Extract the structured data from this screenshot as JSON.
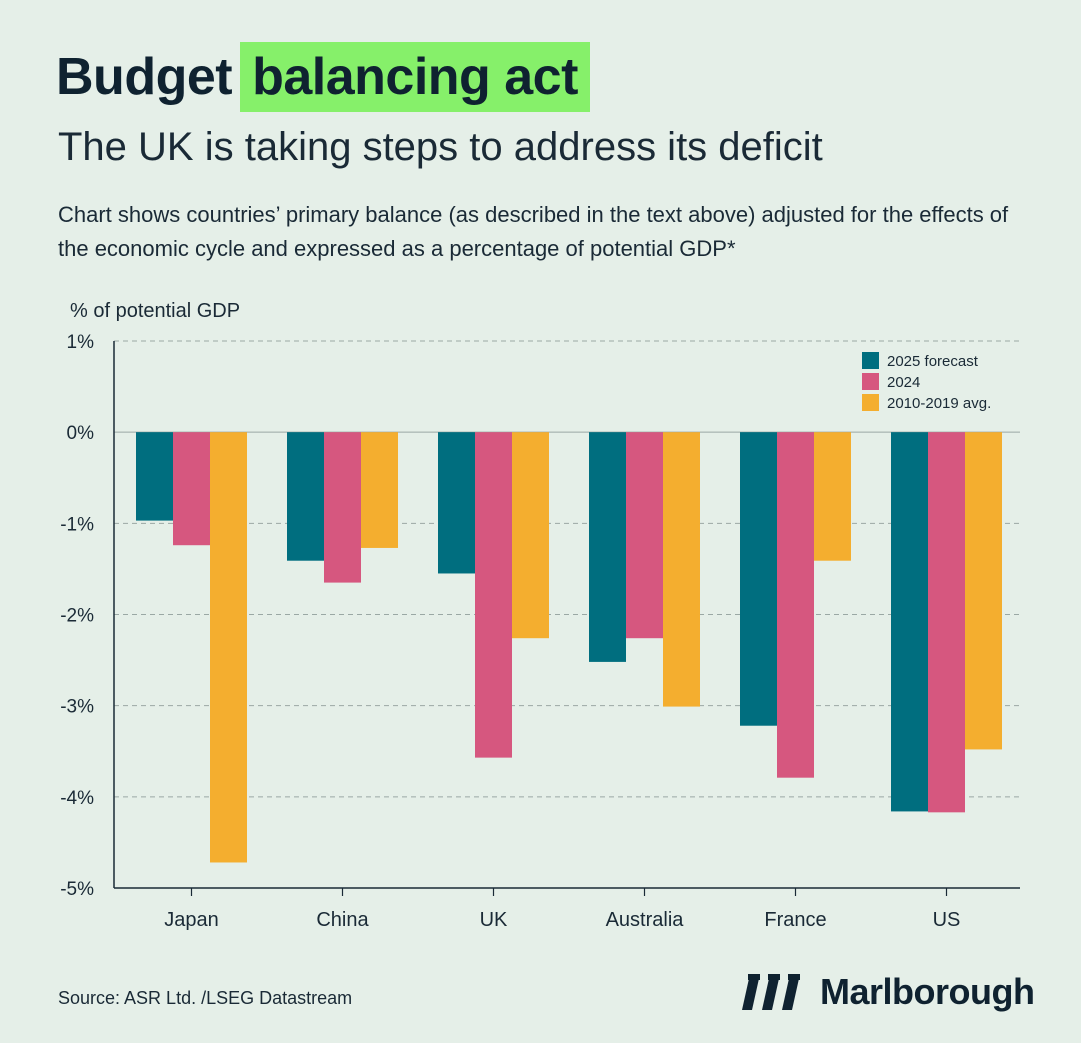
{
  "header": {
    "title_part1": "Budget",
    "title_part2": "balancing act",
    "title_highlight_color": "#86f06a",
    "subtitle": "The UK is taking steps to address its deficit",
    "description": "Chart shows countries’ primary balance (as described in the text above) adjusted for the effects of the economic cycle and expressed as a percentage of potential GDP*"
  },
  "chart_data": {
    "type": "bar",
    "ylabel": "% of potential GDP",
    "ylim": [
      -5,
      1
    ],
    "yticks": [
      1,
      0,
      -1,
      -2,
      -3,
      -4,
      -5
    ],
    "ytick_labels": [
      "1%",
      "0%",
      "-1%",
      "-2%",
      "-3%",
      "-4%",
      "-5%"
    ],
    "grid": true,
    "legend_position": "top-right",
    "categories": [
      "Japan",
      "China",
      "UK",
      "Australia",
      "France",
      "US"
    ],
    "series": [
      {
        "name": "2025 forecast",
        "color": "#006e7f",
        "values": [
          -0.97,
          -1.41,
          -1.55,
          -2.52,
          -3.22,
          -4.16
        ]
      },
      {
        "name": "2024",
        "color": "#d6577f",
        "values": [
          -1.24,
          -1.65,
          -3.57,
          -2.26,
          -3.79,
          -4.17
        ]
      },
      {
        "name": "2010-2019 avg.",
        "color": "#f4ae2f",
        "values": [
          -4.72,
          -1.27,
          -2.26,
          -3.01,
          -1.41,
          -3.48
        ]
      }
    ]
  },
  "footer": {
    "source": "Source: ASR Ltd. /LSEG Datastream",
    "brand_name": "Marlborough",
    "brand_logo_icon": "marlborough-logo-icon"
  }
}
